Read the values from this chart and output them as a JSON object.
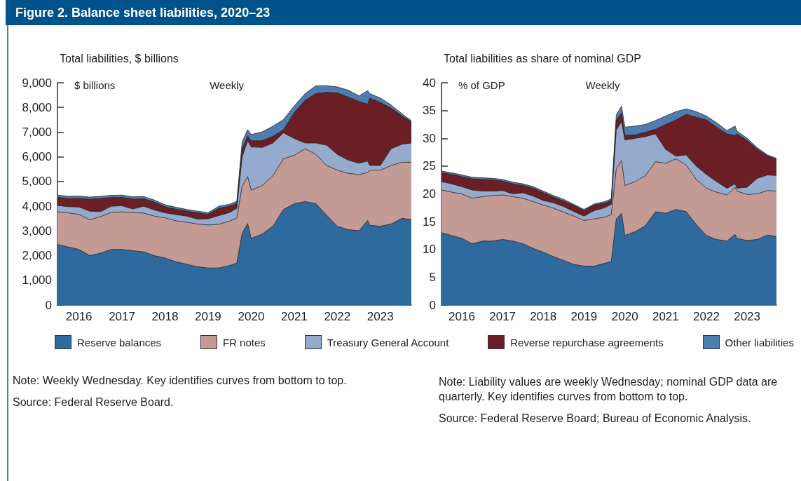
{
  "chart_data": [
    {
      "type": "area",
      "title": "Figure 2. Balance sheet liabilities, 2020–23",
      "subtitle": "Total liabilities, $ billions",
      "ylabel": "$ billions",
      "annotations": [
        "Weekly",
        "Note: Weekly Wednesday. Key identifies curves from bottom to top.",
        "Source: Federal Reserve Board."
      ],
      "stacked": true,
      "legend": "bottom",
      "grid": false,
      "marker": "none",
      "x": [
        "2016-01",
        "2016-04",
        "2016-07",
        "2016-10",
        "2017-01",
        "2017-04",
        "2017-07",
        "2017-10",
        "2018-01",
        "2018-04",
        "2018-07",
        "2018-10",
        "2019-01",
        "2019-04",
        "2019-07",
        "2019-10",
        "2020-01",
        "2020-03-01",
        "2020-04-15",
        "2020-06",
        "2020-07",
        "2020-10",
        "2021-01",
        "2021-04",
        "2021-07",
        "2021-10",
        "2022-01",
        "2022-04",
        "2022-07",
        "2022-10",
        "2023-01",
        "2023-03-15",
        "2023-04",
        "2023-07",
        "2023-10",
        "2024-01",
        "2024-03-20"
      ],
      "xlim": [
        "2016-01-01",
        "2024-03-20"
      ],
      "xticks": [
        {
          "value": "2016-07-01",
          "label": "2016"
        },
        {
          "value": "2017-01-01",
          "label": null
        },
        {
          "value": "2017-07-01",
          "label": "2017"
        },
        {
          "value": "2018-01-01",
          "label": null
        },
        {
          "value": "2018-07-01",
          "label": "2018"
        },
        {
          "value": "2019-01-01",
          "label": null
        },
        {
          "value": "2019-07-01",
          "label": "2019"
        },
        {
          "value": "2020-01-01",
          "label": null
        },
        {
          "value": "2020-07-01",
          "label": "2020"
        },
        {
          "value": "2021-01-01",
          "label": null
        },
        {
          "value": "2021-07-01",
          "label": "2021"
        },
        {
          "value": "2022-01-01",
          "label": null
        },
        {
          "value": "2022-07-01",
          "label": "2022"
        },
        {
          "value": "2023-01-01",
          "label": null
        },
        {
          "value": "2023-07-01",
          "label": "2023"
        },
        {
          "value": "2024-01-01",
          "label": null
        }
      ],
      "ylim": [
        0,
        9000
      ],
      "yticks": [
        0,
        {
          "value": 1000,
          "label": "1,000"
        },
        {
          "value": 2000,
          "label": "2,000"
        },
        {
          "value": 3000,
          "label": "3,000"
        },
        {
          "value": 4000,
          "label": "4,000"
        },
        {
          "value": 5000,
          "label": "5,000"
        },
        {
          "value": 6000,
          "label": "6,000"
        },
        {
          "value": 7000,
          "label": "7,000"
        },
        {
          "value": 8000,
          "label": "8,000"
        },
        {
          "value": 9000,
          "label": "9,000"
        }
      ],
      "series": [
        {
          "name": "Reserve balances",
          "color": "#2e6a9e",
          "values": [
            2450,
            2350,
            2250,
            2000,
            2100,
            2250,
            2250,
            2200,
            2150,
            2000,
            1900,
            1750,
            1650,
            1550,
            1500,
            1500,
            1600,
            1700,
            2900,
            3300,
            2700,
            2870,
            3190,
            3870,
            4100,
            4190,
            4100,
            3640,
            3190,
            3050,
            3010,
            3420,
            3230,
            3190,
            3280,
            3510,
            3460
          ]
        },
        {
          "name": "FR notes",
          "color": "#c49b94",
          "values": [
            1330,
            1380,
            1420,
            1450,
            1480,
            1500,
            1520,
            1540,
            1570,
            1600,
            1630,
            1660,
            1700,
            1730,
            1740,
            1770,
            1800,
            1820,
            1900,
            1900,
            1950,
            1960,
            2050,
            2050,
            1960,
            2140,
            2000,
            2010,
            2270,
            2280,
            2270,
            1950,
            2230,
            2270,
            2370,
            2270,
            2320
          ]
        },
        {
          "name": "Treasury General Account",
          "color": "#95abce",
          "values": [
            250,
            250,
            300,
            350,
            200,
            250,
            250,
            150,
            280,
            250,
            200,
            250,
            250,
            200,
            250,
            350,
            350,
            400,
            1200,
            1450,
            1750,
            1550,
            1320,
            1050,
            680,
            230,
            460,
            820,
            640,
            540,
            460,
            460,
            190,
            190,
            680,
            730,
            780
          ]
        },
        {
          "name": "Reverse repurchase agreements",
          "color": "#6b1f25",
          "values": [
            330,
            330,
            350,
            480,
            530,
            350,
            340,
            400,
            300,
            320,
            250,
            220,
            200,
            250,
            180,
            300,
            250,
            200,
            300,
            200,
            250,
            270,
            270,
            130,
            1050,
            1730,
            2000,
            2140,
            2490,
            2550,
            2500,
            2300,
            2730,
            2550,
            1640,
            1140,
            860
          ]
        },
        {
          "name": "Other liabilities",
          "color": "#4f7db0",
          "values": [
            90,
            90,
            90,
            90,
            90,
            90,
            90,
            90,
            90,
            80,
            80,
            80,
            70,
            70,
            70,
            80,
            80,
            80,
            300,
            250,
            250,
            360,
            410,
            410,
            270,
            270,
            320,
            270,
            240,
            280,
            230,
            550,
            180,
            180,
            130,
            90,
            40
          ]
        }
      ]
    },
    {
      "type": "area",
      "title": "Total liabilities as share of nominal GDP",
      "ylabel": "% of GDP",
      "annotations": [
        "Weekly",
        "Note: Liability values are weekly Wednesday; nominal GDP data are quarterly. Key identifies curves from bottom to top.",
        "Source: Federal Reserve Board; Bureau of Economic Analysis."
      ],
      "stacked": true,
      "grid": false,
      "marker": "none",
      "x": [
        "2016-01",
        "2016-04",
        "2016-07",
        "2016-10",
        "2017-01",
        "2017-04",
        "2017-07",
        "2017-10",
        "2018-01",
        "2018-04",
        "2018-07",
        "2018-10",
        "2019-01",
        "2019-04",
        "2019-07",
        "2019-10",
        "2020-01",
        "2020-03-01",
        "2020-04-15",
        "2020-06",
        "2020-07",
        "2020-10",
        "2021-01",
        "2021-04",
        "2021-07",
        "2021-10",
        "2022-01",
        "2022-04",
        "2022-07",
        "2022-10",
        "2023-01",
        "2023-03-15",
        "2023-04",
        "2023-07",
        "2023-10",
        "2024-01",
        "2024-03-20"
      ],
      "xlim": [
        "2016-01-01",
        "2024-03-20"
      ],
      "xticks": [
        {
          "value": "2016-07-01",
          "label": "2016"
        },
        {
          "value": "2017-01-01",
          "label": null
        },
        {
          "value": "2017-07-01",
          "label": "2017"
        },
        {
          "value": "2018-01-01",
          "label": null
        },
        {
          "value": "2018-07-01",
          "label": "2018"
        },
        {
          "value": "2019-01-01",
          "label": null
        },
        {
          "value": "2019-07-01",
          "label": "2019"
        },
        {
          "value": "2020-01-01",
          "label": null
        },
        {
          "value": "2020-07-01",
          "label": "2020"
        },
        {
          "value": "2021-01-01",
          "label": null
        },
        {
          "value": "2021-07-01",
          "label": "2021"
        },
        {
          "value": "2022-01-01",
          "label": null
        },
        {
          "value": "2022-07-01",
          "label": "2022"
        },
        {
          "value": "2023-01-01",
          "label": null
        },
        {
          "value": "2023-07-01",
          "label": "2023"
        },
        {
          "value": "2024-01-01",
          "label": null
        }
      ],
      "ylim": [
        0,
        40
      ],
      "yticks": [
        0,
        5,
        10,
        15,
        20,
        25,
        30,
        35,
        40
      ],
      "series": [
        {
          "color": "#2e6a9e",
          "values": [
            13.0,
            12.5,
            12.0,
            11.0,
            11.5,
            11.5,
            11.8,
            11.5,
            11.0,
            10.2,
            9.5,
            8.7,
            8.0,
            7.3,
            7.0,
            7.0,
            7.5,
            7.8,
            15.5,
            16.5,
            12.5,
            13.2,
            14.3,
            16.8,
            16.5,
            17.2,
            16.8,
            14.5,
            12.5,
            11.8,
            11.5,
            12.7,
            12.0,
            11.6,
            11.8,
            12.6,
            12.3
          ]
        },
        {
          "color": "#c49b94",
          "values": [
            7.7,
            7.8,
            8.0,
            8.2,
            8.0,
            8.2,
            8.0,
            8.0,
            8.2,
            8.4,
            8.5,
            8.7,
            8.7,
            8.7,
            8.2,
            8.5,
            8.3,
            8.5,
            9.0,
            9.5,
            9.0,
            9.0,
            9.0,
            9.0,
            9.0,
            9.1,
            8.4,
            8.1,
            8.5,
            8.5,
            8.3,
            8.5,
            8.5,
            8.3,
            8.2,
            8.0,
            8.2
          ]
        },
        {
          "color": "#95abce",
          "values": [
            1.5,
            1.5,
            1.3,
            1.5,
            1.0,
            0.8,
            0.8,
            0.5,
            1.0,
            1.0,
            0.8,
            1.0,
            1.0,
            0.8,
            0.8,
            1.5,
            1.7,
            1.8,
            7.0,
            7.0,
            8.2,
            7.8,
            7.0,
            5.0,
            2.5,
            0.5,
            1.8,
            2.4,
            2.5,
            1.9,
            1.2,
            0.6,
            0.5,
            1.3,
            2.8,
            2.8,
            2.8
          ]
        },
        {
          "color": "#6b1f25",
          "values": [
            1.6,
            1.7,
            1.8,
            2.0,
            2.1,
            2.0,
            1.7,
            1.8,
            1.3,
            1.4,
            1.4,
            1.0,
            1.0,
            1.1,
            1.0,
            1.0,
            0.8,
            0.7,
            1.7,
            1.5,
            0.8,
            0.6,
            0.8,
            0.8,
            4.5,
            6.5,
            7.3,
            8.8,
            9.8,
            9.8,
            9.8,
            8.7,
            9.8,
            8.4,
            5.2,
            3.4,
            2.9
          ]
        },
        {
          "color": "#4f7db0",
          "values": [
            0.3,
            0.3,
            0.3,
            0.3,
            0.3,
            0.3,
            0.3,
            0.3,
            0.3,
            0.3,
            0.3,
            0.3,
            0.3,
            0.2,
            0.2,
            0.2,
            0.3,
            0.3,
            1.0,
            1.3,
            1.5,
            1.6,
            1.4,
            1.6,
            1.5,
            1.5,
            1.0,
            1.0,
            0.7,
            0.8,
            0.6,
            1.7,
            0.5,
            0.4,
            0.3,
            0.2,
            0.2
          ]
        }
      ]
    }
  ]
}
